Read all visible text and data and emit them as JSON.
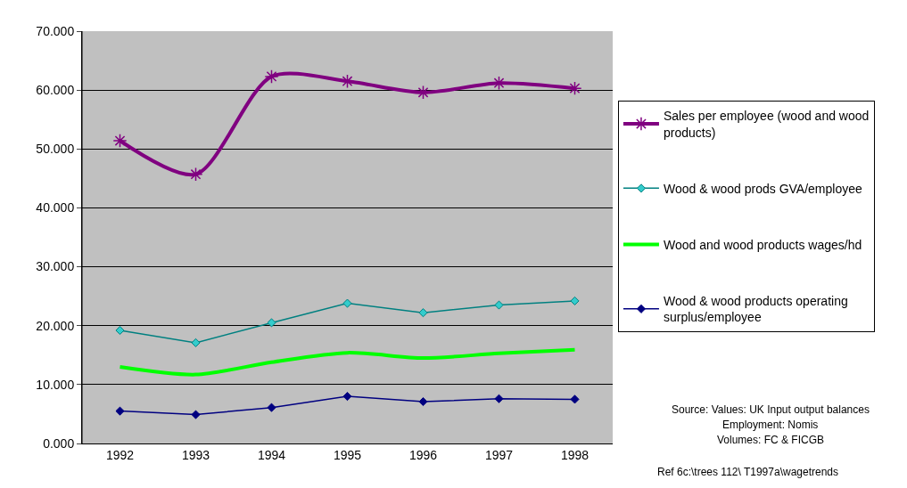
{
  "chart_data": {
    "type": "line",
    "categories": [
      "1992",
      "1993",
      "1994",
      "1995",
      "1996",
      "1997",
      "1998"
    ],
    "series": [
      {
        "name": "Sales per employee (wood and wood products)",
        "color": "#800080",
        "marker": "cross",
        "values": [
          51.4,
          45.7,
          62.3,
          61.5,
          59.6,
          61.2,
          60.3
        ]
      },
      {
        "name": "Wood & wood prods GVA/employee",
        "color": "#008080",
        "marker": "diamond",
        "values": [
          19.2,
          17.1,
          20.5,
          23.8,
          22.2,
          23.5,
          24.2
        ]
      },
      {
        "name": "Wood and wood products wages/hd",
        "color": "#00ff00",
        "marker": "none",
        "values": [
          13.0,
          11.7,
          13.8,
          15.4,
          14.5,
          15.3,
          15.9
        ]
      },
      {
        "name": "Wood & wood products operating surplus/employee",
        "color": "#000080",
        "marker": "diamond",
        "values": [
          5.5,
          4.9,
          6.1,
          8.0,
          7.1,
          7.6,
          7.5
        ]
      }
    ],
    "ylim": [
      0,
      70
    ],
    "yticks": [
      {
        "value": 0,
        "label": "0.000"
      },
      {
        "value": 10,
        "label": "10.000"
      },
      {
        "value": 20,
        "label": "20.000"
      },
      {
        "value": 30,
        "label": "30.000"
      },
      {
        "value": 40,
        "label": "40.000"
      },
      {
        "value": 50,
        "label": "50.000"
      },
      {
        "value": 60,
        "label": "60.000"
      },
      {
        "value": 70,
        "label": "70.000"
      }
    ],
    "grid": "y",
    "legend": "right",
    "annotations": [
      "Source: Values: UK Input output balances",
      "Employment: Nomis",
      "Volumes: FC & FICGB",
      "Ref 6c:\\trees 112\\ T1997a\\wagetrends"
    ]
  }
}
